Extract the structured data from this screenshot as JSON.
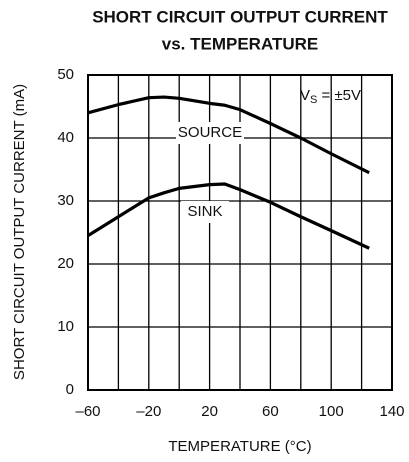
{
  "chart_data": {
    "type": "line",
    "title": [
      "SHORT CIRCUIT OUTPUT CURRENT",
      "vs. TEMPERATURE"
    ],
    "xlabel": "TEMPERATURE (°C)",
    "ylabel": "SHORT CIRCUIT OUTPUT CURRENT (mA)",
    "supply_label": {
      "main": "V",
      "sub": "S",
      "rest": " = ±5V"
    },
    "x": [
      -60,
      -40,
      -20,
      -10,
      0,
      20,
      30,
      40,
      60,
      80,
      100,
      125
    ],
    "series": [
      {
        "name": "SOURCE",
        "color": "#000000",
        "values": [
          44,
          45.3,
          46.4,
          46.5,
          46.3,
          45.5,
          45.2,
          44.5,
          42.3,
          40,
          37.5,
          34.5
        ]
      },
      {
        "name": "SINK",
        "color": "#000000",
        "values": [
          24.5,
          27.5,
          30.5,
          31.3,
          32,
          32.6,
          32.7,
          31.8,
          29.8,
          27.5,
          25.3,
          22.5
        ]
      }
    ],
    "xlim": [
      -60,
      140
    ],
    "xticks": [
      {
        "value": -60,
        "label": "–60"
      },
      {
        "value": -20,
        "label": "–20"
      },
      20,
      60,
      100,
      140
    ],
    "xgrid": [
      -40,
      0,
      40,
      80,
      120
    ],
    "ylim": [
      0,
      50
    ],
    "yticks": [
      0,
      10,
      20,
      30,
      40,
      50
    ],
    "grid": true
  }
}
